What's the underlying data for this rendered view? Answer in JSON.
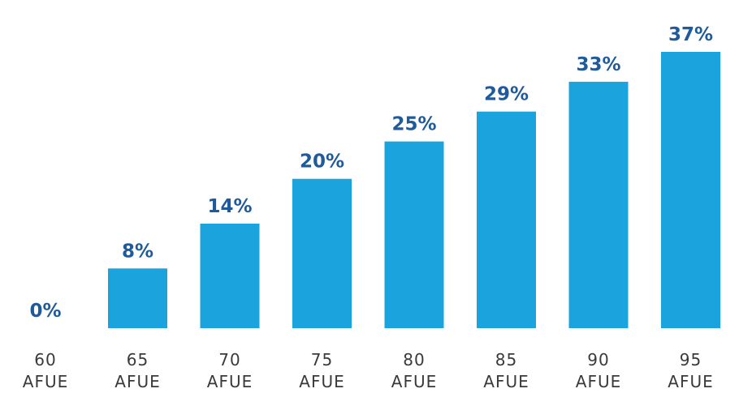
{
  "chart_data": {
    "type": "bar",
    "categories": [
      [
        "60",
        "AFUE"
      ],
      [
        "65",
        "AFUE"
      ],
      [
        "70",
        "AFUE"
      ],
      [
        "75",
        "AFUE"
      ],
      [
        "80",
        "AFUE"
      ],
      [
        "85",
        "AFUE"
      ],
      [
        "90",
        "AFUE"
      ],
      [
        "95",
        "AFUE"
      ]
    ],
    "values": [
      0,
      8,
      14,
      20,
      25,
      29,
      33,
      37
    ],
    "value_labels": [
      "0%",
      "8%",
      "14%",
      "20%",
      "25%",
      "29%",
      "33%",
      "37%"
    ],
    "ylim": [
      0,
      37
    ],
    "grid": false,
    "legend": "none",
    "bar_color": "#1aa3dd",
    "label_color": "#1f5a9a"
  }
}
